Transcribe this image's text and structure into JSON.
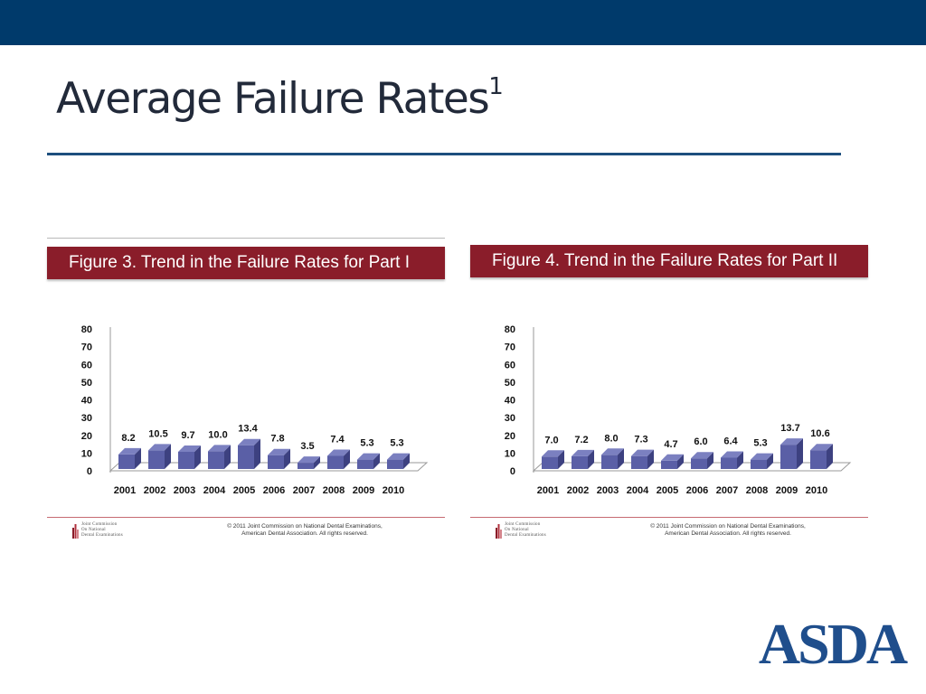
{
  "slide": {
    "title": "Average Failure Rates",
    "title_superscript": "1"
  },
  "colors": {
    "top_bar": "#003a6b",
    "banner": "#8a1d2a",
    "bar_front": "#5a5fa6",
    "bar_top": "#7b80c0",
    "bar_side": "#3d4180",
    "asda_logo": "#1f4e8c"
  },
  "figures": [
    {
      "banner": "Figure 3. Trend in the Failure Rates for Part I",
      "footer_org_lines": [
        "Joint Commission",
        "On National",
        "Dental Examinations"
      ],
      "copyright_lines": [
        "© 2011 Joint Commission on National Dental Examinations,",
        "American Dental Association.  All rights reserved."
      ]
    },
    {
      "banner": "Figure 4. Trend in the Failure Rates for Part II",
      "footer_org_lines": [
        "Joint Commission",
        "On National",
        "Dental Examinations"
      ],
      "copyright_lines": [
        "© 2011 Joint Commission on National Dental Examinations,",
        "American Dental Association.  All rights reserved."
      ]
    }
  ],
  "chart_data": [
    {
      "type": "bar",
      "style": "3d-column",
      "title": "Figure 3. Trend in the Failure Rates for Part I",
      "categories": [
        "2001",
        "2002",
        "2003",
        "2004",
        "2005",
        "2006",
        "2007",
        "2008",
        "2009",
        "2010"
      ],
      "values": [
        8.2,
        10.5,
        9.7,
        10.0,
        13.4,
        7.8,
        3.5,
        7.4,
        5.3,
        5.3
      ],
      "value_labels": [
        "8.2",
        "10.5",
        "9.7",
        "10.0",
        "13.4",
        "7.8",
        "3.5",
        "7.4",
        "5.3",
        "5.3"
      ],
      "ylim": [
        0,
        80
      ],
      "yticks": [
        0,
        10,
        20,
        30,
        40,
        50,
        60,
        70,
        80
      ],
      "xlabel": "",
      "ylabel": "",
      "grid": false,
      "legend": false
    },
    {
      "type": "bar",
      "style": "3d-column",
      "title": "Figure 4. Trend in the Failure Rates for Part II",
      "categories": [
        "2001",
        "2002",
        "2003",
        "2004",
        "2005",
        "2006",
        "2007",
        "2008",
        "2009",
        "2010"
      ],
      "values": [
        7.0,
        7.2,
        8.0,
        7.3,
        4.7,
        6.0,
        6.4,
        5.3,
        13.7,
        10.6
      ],
      "value_labels": [
        "7.0",
        "7.2",
        "8.0",
        "7.3",
        "4.7",
        "6.0",
        "6.4",
        "5.3",
        "13.7",
        "10.6"
      ],
      "ylim": [
        0,
        80
      ],
      "yticks": [
        0,
        10,
        20,
        30,
        40,
        50,
        60,
        70,
        80
      ],
      "xlabel": "",
      "ylabel": "",
      "grid": false,
      "legend": false
    }
  ],
  "asda_logo": {
    "text": "ASDA",
    "icon": "asda-logo"
  }
}
